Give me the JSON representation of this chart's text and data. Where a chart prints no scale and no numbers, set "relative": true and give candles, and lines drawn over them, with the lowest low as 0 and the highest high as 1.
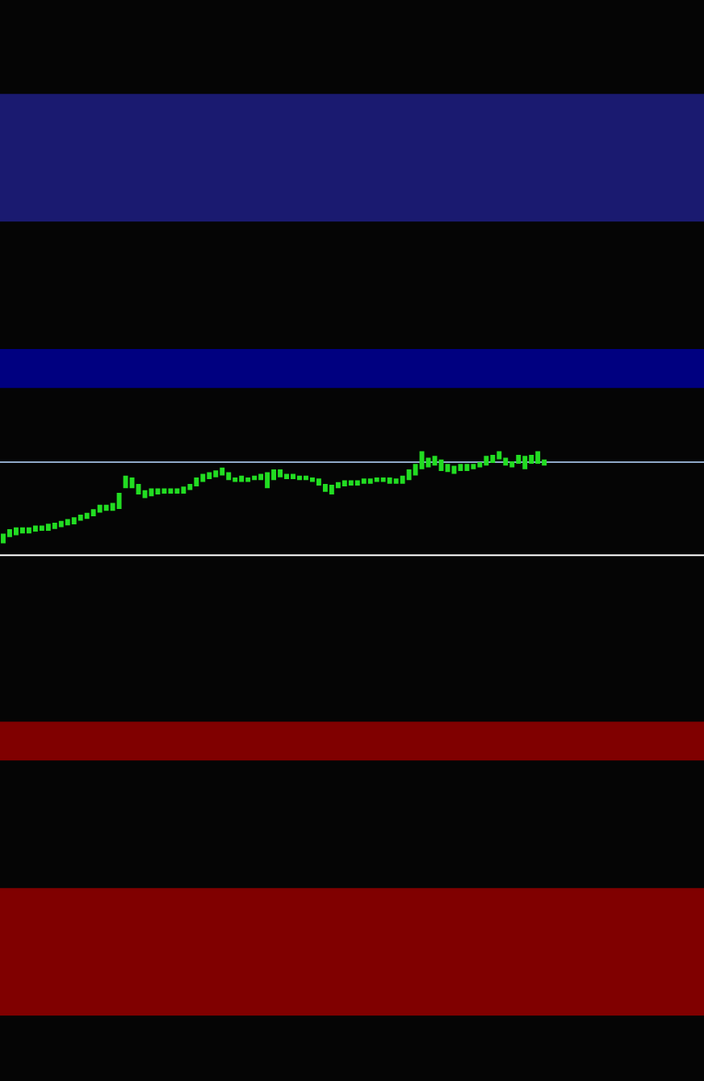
{
  "chart_data": {
    "type": "candlestick",
    "relative": true,
    "color": "#22dd22",
    "categories": [
      null,
      null,
      null,
      null,
      null,
      null,
      null,
      null,
      null,
      null,
      null,
      null,
      null,
      null,
      null,
      null,
      null,
      null,
      null,
      null,
      null,
      null,
      null,
      null,
      null,
      null,
      null,
      null,
      null,
      null,
      null,
      null,
      null,
      null,
      null,
      null,
      null,
      null,
      null,
      null,
      null,
      null,
      null,
      null,
      null,
      null,
      null,
      null,
      null,
      null,
      null,
      null,
      null,
      null,
      null,
      null,
      null,
      null,
      null,
      null,
      null,
      null,
      null,
      null,
      null,
      null,
      null,
      null,
      null,
      null,
      null,
      null,
      null,
      null,
      null,
      null,
      null,
      null,
      null,
      null,
      null,
      null,
      null,
      null,
      null
    ],
    "ohlc": [
      [
        0,
        0.09,
        0,
        0.09
      ],
      [
        0.07,
        0.14,
        0.07,
        0.14
      ],
      [
        0.09,
        0.16,
        0.09,
        0.16
      ],
      [
        0.11,
        0.16,
        0.11,
        0.16
      ],
      [
        0.11,
        0.16,
        0.11,
        0.16
      ],
      [
        0.13,
        0.18,
        0.13,
        0.18
      ],
      [
        0.14,
        0.18,
        0.14,
        0.18
      ],
      [
        0.14,
        0.2,
        0.14,
        0.2
      ],
      [
        0.16,
        0.21,
        0.16,
        0.21
      ],
      [
        0.18,
        0.23,
        0.18,
        0.23
      ],
      [
        0.2,
        0.25,
        0.2,
        0.25
      ],
      [
        0.21,
        0.27,
        0.21,
        0.27
      ],
      [
        0.25,
        0.3,
        0.25,
        0.3
      ],
      [
        0.27,
        0.32,
        0.27,
        0.32
      ],
      [
        0.3,
        0.36,
        0.3,
        0.36
      ],
      [
        0.34,
        0.41,
        0.34,
        0.41
      ],
      [
        0.36,
        0.41,
        0.36,
        0.41
      ],
      [
        0.36,
        0.43,
        0.36,
        0.43
      ],
      [
        0.38,
        0.54,
        0.38,
        0.54
      ],
      [
        0.61,
        0.73,
        0.61,
        0.73
      ],
      [
        0.61,
        0.71,
        0.61,
        0.71
      ],
      [
        0.54,
        0.64,
        0.54,
        0.64
      ],
      [
        0.5,
        0.57,
        0.5,
        0.57
      ],
      [
        0.52,
        0.59,
        0.52,
        0.59
      ],
      [
        0.54,
        0.59,
        0.54,
        0.59
      ],
      [
        0.55,
        0.59,
        0.55,
        0.59
      ],
      [
        0.55,
        0.59,
        0.55,
        0.59
      ],
      [
        0.55,
        0.59,
        0.55,
        0.59
      ],
      [
        0.55,
        0.61,
        0.55,
        0.61
      ],
      [
        0.59,
        0.64,
        0.59,
        0.64
      ],
      [
        0.63,
        0.71,
        0.63,
        0.71
      ],
      [
        0.68,
        0.75,
        0.68,
        0.75
      ],
      [
        0.71,
        0.77,
        0.71,
        0.77
      ],
      [
        0.73,
        0.79,
        0.73,
        0.79
      ],
      [
        0.75,
        0.82,
        0.75,
        0.82
      ],
      [
        0.7,
        0.77,
        0.7,
        0.77
      ],
      [
        0.68,
        0.71,
        0.68,
        0.71
      ],
      [
        0.68,
        0.73,
        0.68,
        0.73
      ],
      [
        0.68,
        0.71,
        0.68,
        0.71
      ],
      [
        0.7,
        0.73,
        0.7,
        0.73
      ],
      [
        0.7,
        0.75,
        0.7,
        0.75
      ],
      [
        0.61,
        0.77,
        0.61,
        0.77
      ],
      [
        0.7,
        0.8,
        0.7,
        0.8
      ],
      [
        0.73,
        0.8,
        0.73,
        0.8
      ],
      [
        0.71,
        0.75,
        0.71,
        0.75
      ],
      [
        0.71,
        0.75,
        0.71,
        0.75
      ],
      [
        0.7,
        0.73,
        0.7,
        0.73
      ],
      [
        0.7,
        0.73,
        0.7,
        0.73
      ],
      [
        0.68,
        0.71,
        0.68,
        0.71
      ],
      [
        0.64,
        0.7,
        0.64,
        0.7
      ],
      [
        0.57,
        0.64,
        0.57,
        0.64
      ],
      [
        0.54,
        0.63,
        0.54,
        0.63
      ],
      [
        0.61,
        0.66,
        0.61,
        0.66
      ],
      [
        0.63,
        0.68,
        0.63,
        0.68
      ],
      [
        0.64,
        0.68,
        0.64,
        0.68
      ],
      [
        0.64,
        0.68,
        0.64,
        0.68
      ],
      [
        0.66,
        0.7,
        0.66,
        0.7
      ],
      [
        0.66,
        0.7,
        0.66,
        0.7
      ],
      [
        0.68,
        0.71,
        0.68,
        0.71
      ],
      [
        0.68,
        0.71,
        0.68,
        0.71
      ],
      [
        0.66,
        0.71,
        0.66,
        0.71
      ],
      [
        0.66,
        0.7,
        0.66,
        0.7
      ],
      [
        0.66,
        0.73,
        0.66,
        0.73
      ],
      [
        0.7,
        0.8,
        0.7,
        0.8
      ],
      [
        0.75,
        0.86,
        0.75,
        0.86
      ],
      [
        0.82,
        1.0,
        0.82,
        1.0
      ],
      [
        0.84,
        0.93,
        0.84,
        0.93
      ],
      [
        0.86,
        0.95,
        0.86,
        0.95
      ],
      [
        0.8,
        0.91,
        0.8,
        0.91
      ],
      [
        0.79,
        0.86,
        0.79,
        0.86
      ],
      [
        0.77,
        0.84,
        0.77,
        0.84
      ],
      [
        0.8,
        0.86,
        0.8,
        0.86
      ],
      [
        0.8,
        0.86,
        0.8,
        0.86
      ],
      [
        0.82,
        0.86,
        0.82,
        0.86
      ],
      [
        0.84,
        0.88,
        0.84,
        0.88
      ],
      [
        0.86,
        0.95,
        0.86,
        0.95
      ],
      [
        0.89,
        0.96,
        0.89,
        0.96
      ],
      [
        0.93,
        1.0,
        0.93,
        1.0
      ],
      [
        0.86,
        0.93,
        0.86,
        0.93
      ],
      [
        0.84,
        0.89,
        0.84,
        0.89
      ],
      [
        0.88,
        0.96,
        0.88,
        0.96
      ],
      [
        0.82,
        0.95,
        0.82,
        0.95
      ],
      [
        0.88,
        0.96,
        0.88,
        0.96
      ],
      [
        0.88,
        1.0,
        0.88,
        1.0
      ],
      [
        0.86,
        0.91,
        0.86,
        0.91
      ]
    ],
    "bands": [
      {
        "axis": "y",
        "from": 3.55,
        "to": 4.96,
        "color": "#1a1a70"
      },
      {
        "axis": "y",
        "from": 1.71,
        "to": 2.14,
        "color": "#000080"
      },
      {
        "axis": "y",
        "from": -2.41,
        "to": -1.98,
        "color": "#800000"
      },
      {
        "axis": "y",
        "from": -5.23,
        "to": -3.82,
        "color": "#800000"
      }
    ],
    "ref_lines": [
      {
        "axis": "y",
        "value": 0.89,
        "color": "#8fa8c8",
        "line_style": "solid"
      },
      {
        "axis": "y",
        "value": -0.14,
        "color": "#ffffff",
        "line_style": "solid"
      }
    ]
  }
}
